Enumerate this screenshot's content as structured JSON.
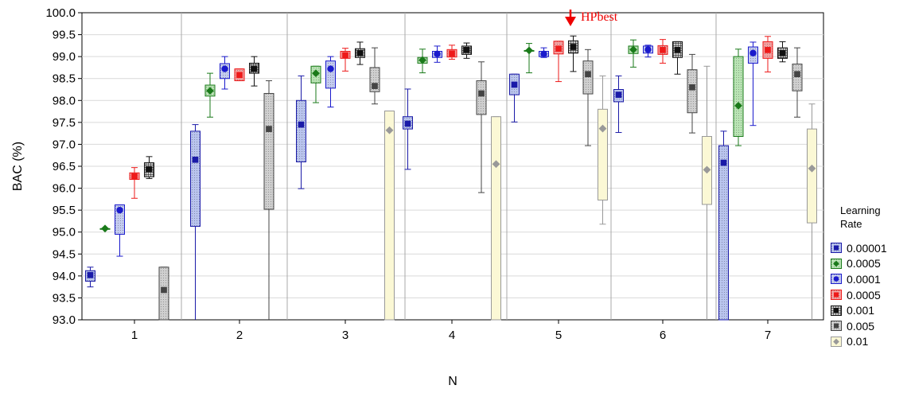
{
  "chart_data": {
    "type": "box",
    "title": "",
    "xlabel": "N",
    "ylabel": "BAC (%)",
    "ylim": [
      93.0,
      100.0
    ],
    "yticks": [
      "93.0",
      "93.5",
      "94.0",
      "94.5",
      "95.0",
      "95.5",
      "96.0",
      "96.5",
      "97.0",
      "97.5",
      "98.0",
      "98.5",
      "99.0",
      "99.5",
      "100.0"
    ],
    "categories": [
      "1",
      "2",
      "3",
      "4",
      "5",
      "6",
      "7"
    ],
    "grid": true,
    "legend": {
      "title_line1": "Learning",
      "title_line2": "Rate",
      "placement": "right"
    },
    "annotation": {
      "text": "HPbest",
      "category": "5",
      "series": "0.001",
      "color": "#ee0000"
    },
    "series": [
      {
        "name": "0.00001",
        "marker": "square",
        "color": "#1a1aa8",
        "fill": "#b9c4ee",
        "median": [
          94.02,
          96.65,
          97.45,
          97.47,
          98.36,
          98.13,
          96.58
        ],
        "q1": [
          93.88,
          95.13,
          96.6,
          97.35,
          98.13,
          97.97,
          93.0
        ],
        "q3": [
          94.12,
          97.3,
          98.0,
          97.63,
          98.6,
          98.25,
          96.97
        ],
        "low": [
          93.75,
          93.0,
          95.99,
          96.43,
          97.51,
          97.27,
          93.0
        ],
        "high": [
          94.2,
          97.45,
          98.56,
          98.26,
          98.6,
          98.56,
          97.3
        ]
      },
      {
        "name": "0.0005",
        "marker": "diamond",
        "color": "#1a7a1a",
        "fill": "#b9e4b4",
        "median": [
          95.08,
          98.22,
          98.62,
          98.92,
          99.14,
          99.16,
          97.88
        ],
        "q1": [
          95.08,
          98.1,
          98.4,
          98.85,
          99.14,
          99.07,
          97.18
        ],
        "q3": [
          95.08,
          98.35,
          98.78,
          98.98,
          99.14,
          99.24,
          99.0
        ],
        "low": [
          95.08,
          97.62,
          97.95,
          98.63,
          98.63,
          98.76,
          96.97
        ],
        "high": [
          95.08,
          98.62,
          98.78,
          99.17,
          99.3,
          99.38,
          99.17
        ]
      },
      {
        "name": "0.0001",
        "marker": "circle",
        "color": "#1a1acc",
        "fill": "#c4ccf0",
        "median": [
          95.5,
          98.72,
          98.72,
          99.06,
          99.06,
          99.16,
          99.08
        ],
        "q1": [
          94.95,
          98.5,
          98.28,
          98.98,
          99.0,
          99.08,
          98.85
        ],
        "q3": [
          95.62,
          98.84,
          98.9,
          99.12,
          99.12,
          99.24,
          99.22
        ],
        "low": [
          94.45,
          98.26,
          97.85,
          98.87,
          98.98,
          98.99,
          97.43
        ],
        "high": [
          95.62,
          99.0,
          99.0,
          99.24,
          99.2,
          99.26,
          99.33
        ]
      },
      {
        "name": "0.0005",
        "marker": "square",
        "color": "#ee1a1a",
        "fill": "#f4a0a0",
        "median": [
          96.27,
          98.58,
          99.03,
          99.07,
          99.18,
          99.15,
          99.15
        ],
        "q1": [
          96.2,
          98.45,
          98.96,
          98.99,
          99.06,
          99.05,
          98.96
        ],
        "q3": [
          96.35,
          98.72,
          99.12,
          99.16,
          99.35,
          99.25,
          99.34
        ],
        "low": [
          95.77,
          98.45,
          98.67,
          98.94,
          98.43,
          98.85,
          98.65
        ],
        "high": [
          96.47,
          98.72,
          99.19,
          99.26,
          99.35,
          99.39,
          99.46
        ]
      },
      {
        "name": "0.001",
        "marker": "square",
        "color": "#111111",
        "fill": "#cccccc",
        "median": [
          96.43,
          98.72,
          99.08,
          99.15,
          99.22,
          99.15,
          99.08
        ],
        "q1": [
          96.26,
          98.62,
          98.98,
          99.05,
          99.08,
          98.98,
          98.96
        ],
        "q3": [
          96.58,
          98.85,
          99.18,
          99.24,
          99.36,
          99.34,
          99.2
        ],
        "low": [
          96.22,
          98.33,
          98.82,
          98.96,
          98.66,
          98.6,
          98.88
        ],
        "high": [
          96.72,
          99.0,
          99.33,
          99.31,
          99.47,
          99.34,
          99.34
        ]
      },
      {
        "name": "0.005",
        "marker": "square",
        "color": "#444444",
        "fill": "#cfcfcf",
        "median": [
          93.68,
          97.35,
          98.33,
          98.16,
          98.6,
          98.3,
          98.6
        ],
        "q1": [
          93.0,
          95.52,
          98.2,
          97.68,
          98.15,
          97.72,
          98.22
        ],
        "q3": [
          94.2,
          98.16,
          98.75,
          98.45,
          98.9,
          98.7,
          98.83
        ],
        "low": [
          93.0,
          93.0,
          97.92,
          95.9,
          96.97,
          97.26,
          97.62
        ],
        "high": [
          94.2,
          98.45,
          99.2,
          98.88,
          99.16,
          99.05,
          99.2
        ]
      },
      {
        "name": "0.01",
        "marker": "diamond",
        "color": "#999999",
        "fill": "#fbf8d5",
        "median": [
          null,
          null,
          97.32,
          96.55,
          97.36,
          96.42,
          96.45
        ],
        "q1": [
          null,
          null,
          93.0,
          93.0,
          95.73,
          95.63,
          95.21
        ],
        "q3": [
          null,
          null,
          97.76,
          97.63,
          97.8,
          97.18,
          97.35
        ],
        "low": [
          null,
          null,
          93.0,
          93.0,
          95.18,
          93.0,
          93.0
        ],
        "high": [
          null,
          null,
          97.76,
          97.63,
          98.56,
          98.78,
          97.92
        ]
      }
    ]
  }
}
